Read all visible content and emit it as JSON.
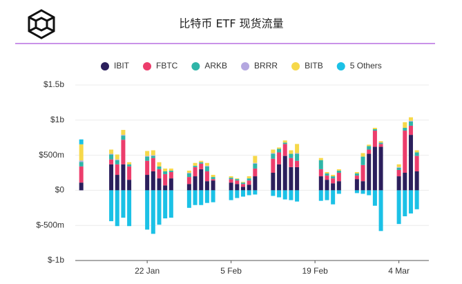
{
  "chart_data": {
    "type": "stacked-bar",
    "title": "比特币 ETF 现货流量",
    "x": [
      "11 Jan",
      "16 Jan",
      "17 Jan",
      "18 Jan",
      "19 Jan",
      "22 Jan",
      "23 Jan",
      "24 Jan",
      "25 Jan",
      "26 Jan",
      "29 Jan",
      "30 Jan",
      "31 Jan",
      "1 Feb",
      "2 Feb",
      "5 Feb",
      "6 Feb",
      "7 Feb",
      "8 Feb",
      "9 Feb",
      "12 Feb",
      "13 Feb",
      "14 Feb",
      "15 Feb",
      "16 Feb",
      "20 Feb",
      "21 Feb",
      "22 Feb",
      "23 Feb",
      "26 Feb",
      "27 Feb",
      "28 Feb",
      "29 Feb",
      "1 Mar",
      "4 Mar",
      "5 Mar",
      "6 Mar",
      "7 Mar"
    ],
    "xlim": [
      "10 Jan",
      "9 Mar"
    ],
    "xticks": [
      "22 Jan",
      "5 Feb",
      "19 Feb",
      "4 Mar"
    ],
    "ylim": [
      -1000,
      1500
    ],
    "yticks": [
      {
        "value": -1000,
        "label": "$-1b"
      },
      {
        "value": -500,
        "label": "$-500m"
      },
      {
        "value": 0,
        "label": "$0"
      },
      {
        "value": 500,
        "label": "$500m"
      },
      {
        "value": 1000,
        "label": "$1b"
      },
      {
        "value": 1500,
        "label": "$1.5b"
      }
    ],
    "grid": true,
    "series": [
      {
        "name": "IBIT",
        "color": "#2b1f5c",
        "values": [
          110,
          370,
          220,
          370,
          150,
          220,
          270,
          170,
          70,
          170,
          90,
          200,
          300,
          130,
          140,
          110,
          90,
          50,
          80,
          200,
          250,
          370,
          490,
          330,
          330,
          200,
          150,
          100,
          130,
          160,
          130,
          520,
          620,
          620,
          200,
          250,
          790,
          270
        ]
      },
      {
        "name": "FBTC",
        "color": "#ec3d6c",
        "values": [
          230,
          70,
          150,
          350,
          190,
          200,
          190,
          130,
          160,
          90,
          100,
          130,
          80,
          140,
          20,
          50,
          50,
          40,
          60,
          110,
          200,
          170,
          170,
          130,
          90,
          100,
          60,
          70,
          120,
          50,
          230,
          60,
          230,
          40,
          90,
          600,
          130,
          220
        ]
      },
      {
        "name": "ARKB",
        "color": "#2fb5a8",
        "values": [
          65,
          70,
          60,
          60,
          30,
          60,
          30,
          40,
          40,
          20,
          50,
          20,
          20,
          70,
          30,
          20,
          20,
          20,
          30,
          70,
          70,
          50,
          20,
          60,
          100,
          130,
          30,
          30,
          30,
          30,
          120,
          50,
          20,
          20,
          30,
          40,
          60,
          50
        ]
      },
      {
        "name": "BRRR",
        "color": "#b4a7e0",
        "values": [
          20,
          10,
          10,
          10,
          0,
          10,
          10,
          0,
          0,
          0,
          10,
          0,
          0,
          10,
          0,
          0,
          0,
          0,
          0,
          10,
          10,
          0,
          0,
          0,
          10,
          0,
          0,
          0,
          0,
          0,
          0,
          0,
          0,
          0,
          10,
          0,
          10,
          0
        ]
      },
      {
        "name": "BITB",
        "color": "#f6d84a",
        "values": [
          230,
          60,
          70,
          70,
          30,
          70,
          70,
          60,
          40,
          30,
          30,
          40,
          20,
          40,
          30,
          20,
          10,
          10,
          30,
          100,
          50,
          20,
          30,
          50,
          130,
          30,
          20,
          20,
          20,
          20,
          50,
          20,
          20,
          20,
          40,
          80,
          50,
          30
        ]
      },
      {
        "name": "5 Others",
        "color": "#1bc1e6",
        "values": [
          70,
          -440,
          -510,
          -390,
          -510,
          -560,
          -620,
          -490,
          -400,
          -390,
          -250,
          -210,
          -210,
          -180,
          -170,
          -140,
          -110,
          -90,
          -70,
          -60,
          -80,
          -100,
          -130,
          -140,
          -160,
          -150,
          -140,
          -200,
          -50,
          -40,
          -50,
          -70,
          -220,
          -580,
          -480,
          -370,
          -330,
          -270
        ]
      }
    ]
  }
}
